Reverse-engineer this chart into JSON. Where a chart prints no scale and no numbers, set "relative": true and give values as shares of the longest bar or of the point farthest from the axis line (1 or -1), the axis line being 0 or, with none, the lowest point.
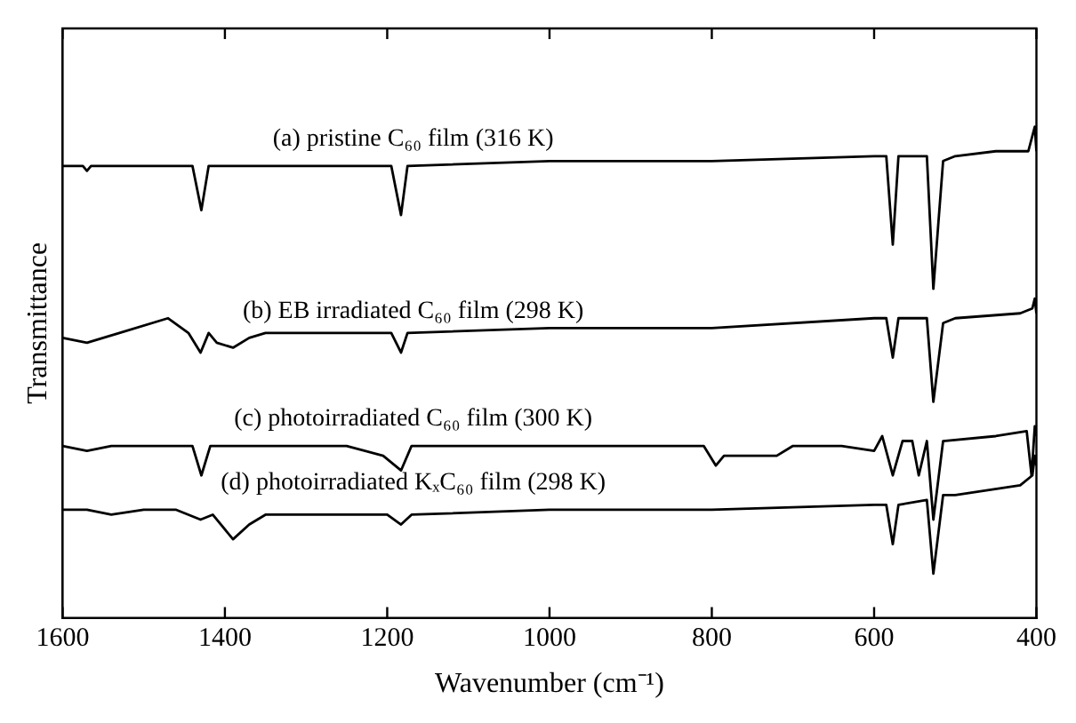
{
  "chart_data": {
    "type": "line",
    "relative": true,
    "xlabel": "Wavenumber (cm⁻¹)",
    "ylabel": "Transmittance",
    "xlim": [
      1600,
      400
    ],
    "xticks": [
      1600,
      1400,
      1200,
      1000,
      800,
      600,
      400
    ],
    "grid": false,
    "legend": false,
    "series": [
      {
        "name": "(a) pristine C₆₀ film (316 K)",
        "color": "#000000",
        "x": [
          1600,
          1575,
          1570,
          1565,
          1440,
          1429,
          1420,
          1195,
          1183,
          1175,
          1000,
          800,
          600,
          585,
          577,
          570,
          535,
          527,
          515,
          500,
          450,
          410,
          402,
          400
        ],
        "values": [
          0.92,
          0.92,
          0.91,
          0.92,
          0.92,
          0.83,
          0.92,
          0.92,
          0.82,
          0.92,
          0.93,
          0.93,
          0.94,
          0.94,
          0.76,
          0.94,
          0.94,
          0.67,
          0.93,
          0.94,
          0.95,
          0.95,
          1,
          0.95
        ]
      },
      {
        "name": "(b) EB irradiated C₆₀ film (298 K)",
        "color": "#000000",
        "x": [
          1600,
          1570,
          1530,
          1470,
          1445,
          1430,
          1420,
          1410,
          1390,
          1370,
          1350,
          1195,
          1183,
          1175,
          1000,
          800,
          600,
          585,
          577,
          570,
          535,
          527,
          515,
          500,
          420,
          405,
          402,
          400
        ],
        "values": [
          0.57,
          0.56,
          0.58,
          0.61,
          0.58,
          0.54,
          0.58,
          0.56,
          0.55,
          0.57,
          0.58,
          0.58,
          0.54,
          0.58,
          0.59,
          0.59,
          0.61,
          0.61,
          0.53,
          0.61,
          0.61,
          0.44,
          0.6,
          0.61,
          0.62,
          0.63,
          0.65,
          0.62
        ]
      },
      {
        "name": "(c) photoirradiated C₆₀ film (300 K)",
        "color": "#000000",
        "x": [
          1600,
          1570,
          1540,
          1440,
          1429,
          1418,
          1250,
          1205,
          1183,
          1170,
          1000,
          810,
          795,
          785,
          740,
          720,
          700,
          640,
          600,
          590,
          577,
          565,
          553,
          545,
          535,
          527,
          515,
          450,
          412,
          406,
          402,
          400
        ],
        "values": [
          0.35,
          0.34,
          0.35,
          0.35,
          0.29,
          0.35,
          0.35,
          0.33,
          0.3,
          0.35,
          0.35,
          0.35,
          0.31,
          0.33,
          0.33,
          0.33,
          0.35,
          0.35,
          0.34,
          0.37,
          0.29,
          0.36,
          0.36,
          0.29,
          0.36,
          0.2,
          0.36,
          0.37,
          0.38,
          0.29,
          0.39,
          0.37
        ]
      },
      {
        "name": "(d) photoirradiated KₓC₆₀ film (298 K)",
        "color": "#000000",
        "x": [
          1600,
          1570,
          1540,
          1500,
          1460,
          1430,
          1415,
          1390,
          1370,
          1350,
          1200,
          1183,
          1170,
          1000,
          800,
          600,
          585,
          577,
          570,
          535,
          527,
          515,
          500,
          420,
          405,
          402,
          400
        ],
        "values": [
          0.22,
          0.22,
          0.21,
          0.22,
          0.22,
          0.2,
          0.21,
          0.16,
          0.19,
          0.21,
          0.21,
          0.19,
          0.21,
          0.22,
          0.22,
          0.23,
          0.23,
          0.15,
          0.23,
          0.24,
          0.09,
          0.25,
          0.25,
          0.27,
          0.29,
          0.33,
          0.31
        ]
      }
    ]
  }
}
